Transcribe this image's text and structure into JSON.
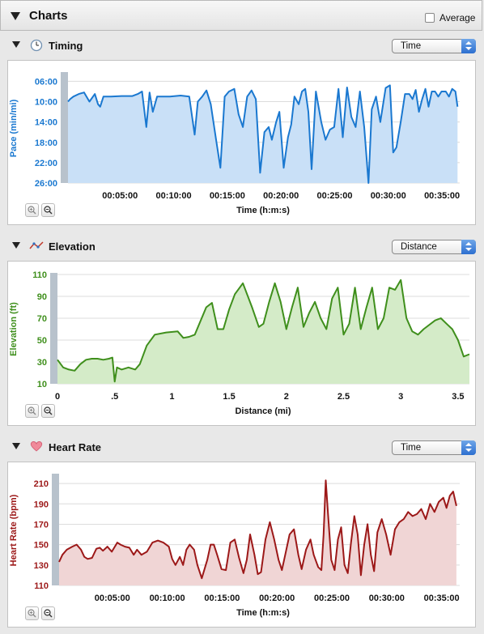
{
  "header": {
    "title": "Charts",
    "average_label": "Average"
  },
  "sections": [
    {
      "title": "Timing",
      "icon": "clock-icon",
      "select_value": "Time"
    },
    {
      "title": "Elevation",
      "icon": "elevation-graph-icon",
      "select_value": "Distance"
    },
    {
      "title": "Heart Rate",
      "icon": "heart-icon",
      "select_value": "Time"
    }
  ],
  "chart_data": [
    {
      "type": "area",
      "color": "#1a78d0",
      "fill": "#c9e0f7",
      "xlabel": "Time (h:m:s)",
      "ylabel": "Pace (min/mi)",
      "x_unit": "minutes",
      "xlim": [
        0,
        36.5
      ],
      "ylim": [
        26,
        4.5
      ],
      "y_inverted": true,
      "x_ticks": [
        {
          "v": 5,
          "label": "00:05:00"
        },
        {
          "v": 10,
          "label": "00:10:00"
        },
        {
          "v": 15,
          "label": "00:15:00"
        },
        {
          "v": 20,
          "label": "00:20:00"
        },
        {
          "v": 25,
          "label": "00:25:00"
        },
        {
          "v": 30,
          "label": "00:30:00"
        },
        {
          "v": 35,
          "label": "00:35:00"
        }
      ],
      "y_ticks": [
        {
          "v": 6,
          "label": "06:00"
        },
        {
          "v": 10,
          "label": "10:00"
        },
        {
          "v": 14,
          "label": "14:00"
        },
        {
          "v": 18,
          "label": "18:00"
        },
        {
          "v": 22,
          "label": "22:00"
        },
        {
          "v": 26,
          "label": "26:00"
        }
      ],
      "x": [
        0,
        0.2,
        0.5,
        1,
        1.5,
        2,
        2.5,
        2.8,
        3,
        3.3,
        3.6,
        4,
        5,
        6,
        6.5,
        6.9,
        7.3,
        7.6,
        7.9,
        8.3,
        8.7,
        9.5,
        10.5,
        11.3,
        11.8,
        12.1,
        12.5,
        12.9,
        13.3,
        13.8,
        14.2,
        14.6,
        15,
        15.5,
        15.9,
        16.3,
        16.7,
        17.1,
        17.5,
        17.9,
        18.3,
        18.7,
        19,
        19.4,
        19.7,
        20.1,
        20.5,
        20.8,
        21.1,
        21.5,
        21.8,
        22.1,
        22.4,
        22.7,
        23.1,
        23.6,
        24,
        24.4,
        24.8,
        25.2,
        25.6,
        26,
        26.4,
        26.8,
        27.2,
        27.6,
        28,
        28.3,
        28.7,
        29.1,
        29.6,
        30,
        30.3,
        30.6,
        31,
        31.4,
        31.8,
        32.1,
        32.4,
        32.7,
        33,
        33.3,
        33.6,
        33.9,
        34.2,
        34.5,
        34.8,
        35.2,
        35.5,
        35.8,
        36.1,
        36.3
      ],
      "y": [
        10,
        9.5,
        9,
        8.5,
        8.2,
        10,
        8.5,
        10.5,
        11,
        9,
        9,
        9,
        8.9,
        8.9,
        8.5,
        8,
        15,
        8.2,
        12,
        9,
        9,
        9,
        8.8,
        9,
        16.5,
        10,
        9,
        7.8,
        10.5,
        17.5,
        23,
        9,
        8,
        7.5,
        12.5,
        15,
        9,
        7.8,
        9.5,
        24,
        16,
        15,
        17.5,
        14,
        12,
        23,
        17,
        14.5,
        9,
        10.5,
        8,
        7.5,
        12,
        23.3,
        8,
        14,
        17.5,
        15.5,
        15,
        7.5,
        17,
        7.2,
        13,
        15,
        8,
        15,
        26,
        11.5,
        9,
        14,
        7.3,
        6.8,
        20,
        19,
        14,
        8.5,
        8.5,
        9.5,
        7.7,
        12,
        9.5,
        7.5,
        11,
        8,
        8,
        9,
        8,
        8,
        9,
        7.5,
        8,
        11
      ]
    },
    {
      "type": "area",
      "color": "#3f8f1c",
      "fill": "#d4ebc8",
      "xlabel": "Distance (mi)",
      "ylabel": "Elevation (ft)",
      "xlim": [
        0,
        3.6
      ],
      "ylim": [
        10,
        110
      ],
      "x_ticks": [
        {
          "v": 0,
          "label": "0"
        },
        {
          "v": 0.5,
          "label": ".5"
        },
        {
          "v": 1,
          "label": "1"
        },
        {
          "v": 1.5,
          "label": "1.5"
        },
        {
          "v": 2,
          "label": "2"
        },
        {
          "v": 2.5,
          "label": "2.5"
        },
        {
          "v": 3,
          "label": "3"
        },
        {
          "v": 3.5,
          "label": "3.5"
        }
      ],
      "y_ticks": [
        {
          "v": 10,
          "label": "10"
        },
        {
          "v": 30,
          "label": "30"
        },
        {
          "v": 50,
          "label": "50"
        },
        {
          "v": 70,
          "label": "70"
        },
        {
          "v": 90,
          "label": "90"
        },
        {
          "v": 110,
          "label": "110"
        }
      ],
      "x": [
        0,
        0.05,
        0.1,
        0.15,
        0.2,
        0.25,
        0.3,
        0.35,
        0.4,
        0.45,
        0.48,
        0.5,
        0.52,
        0.56,
        0.62,
        0.68,
        0.72,
        0.78,
        0.85,
        0.95,
        1.05,
        1.1,
        1.15,
        1.2,
        1.3,
        1.35,
        1.4,
        1.45,
        1.5,
        1.55,
        1.62,
        1.7,
        1.76,
        1.8,
        1.85,
        1.9,
        1.95,
        2.0,
        2.05,
        2.1,
        2.15,
        2.2,
        2.25,
        2.3,
        2.35,
        2.4,
        2.45,
        2.5,
        2.55,
        2.6,
        2.65,
        2.7,
        2.75,
        2.8,
        2.85,
        2.9,
        2.95,
        3.0,
        3.05,
        3.1,
        3.15,
        3.2,
        3.3,
        3.35,
        3.4,
        3.45,
        3.5,
        3.55,
        3.6
      ],
      "y": [
        32,
        25,
        23,
        22,
        28,
        32,
        33,
        33,
        32,
        33,
        34,
        12,
        25,
        23,
        25,
        23,
        28,
        45,
        55,
        57,
        58,
        52,
        53,
        55,
        80,
        84,
        60,
        60,
        78,
        92,
        102,
        80,
        62,
        65,
        85,
        102,
        85,
        60,
        80,
        98,
        62,
        75,
        85,
        70,
        60,
        88,
        98,
        55,
        65,
        98,
        60,
        80,
        98,
        60,
        70,
        98,
        96,
        105,
        70,
        58,
        55,
        60,
        68,
        70,
        65,
        60,
        50,
        35,
        37
      ]
    },
    {
      "type": "area",
      "color": "#9c1818",
      "fill": "#f0d5d5",
      "xlabel": "Time (h:m:s)",
      "ylabel": "Heart Rate (bpm)",
      "x_unit": "minutes",
      "xlim": [
        0,
        36.5
      ],
      "ylim": [
        110,
        218
      ],
      "x_ticks": [
        {
          "v": 5,
          "label": "00:05:00"
        },
        {
          "v": 10,
          "label": "00:10:00"
        },
        {
          "v": 15,
          "label": "00:15:00"
        },
        {
          "v": 20,
          "label": "00:20:00"
        },
        {
          "v": 25,
          "label": "00:25:00"
        },
        {
          "v": 30,
          "label": "00:30:00"
        },
        {
          "v": 35,
          "label": "00:35:00"
        }
      ],
      "y_ticks": [
        {
          "v": 110,
          "label": "110"
        },
        {
          "v": 130,
          "label": "130"
        },
        {
          "v": 150,
          "label": "150"
        },
        {
          "v": 170,
          "label": "170"
        },
        {
          "v": 190,
          "label": "190"
        },
        {
          "v": 210,
          "label": "210"
        }
      ],
      "x": [
        0,
        0.3,
        0.7,
        1.2,
        1.6,
        2,
        2.3,
        2.6,
        3,
        3.4,
        3.7,
        4,
        4.4,
        4.8,
        5.3,
        5.6,
        6,
        6.4,
        6.8,
        7.1,
        7.5,
        8.0,
        8.5,
        9.0,
        9.5,
        10,
        10.3,
        10.6,
        11,
        11.3,
        11.6,
        11.9,
        12.3,
        12.6,
        13,
        13.5,
        13.8,
        14.1,
        14.4,
        14.8,
        15.2,
        15.6,
        16,
        16.4,
        16.8,
        17.1,
        17.4,
        17.8,
        18.1,
        18.4,
        18.8,
        19.2,
        19.6,
        20,
        20.3,
        20.6,
        21,
        21.4,
        21.8,
        22.1,
        22.5,
        22.9,
        23.2,
        23.6,
        23.9,
        24.1,
        24.3,
        24.5,
        24.8,
        25.1,
        25.4,
        25.7,
        26,
        26.3,
        26.6,
        26.9,
        27.2,
        27.5,
        27.8,
        28.1,
        28.4,
        28.7,
        29,
        29.4,
        29.8,
        30.2,
        30.6,
        31,
        31.4,
        31.8,
        32.2,
        32.6,
        33,
        33.4,
        33.8,
        34.2,
        34.6,
        35,
        35.3,
        35.6,
        35.9,
        36.2
      ],
      "y": [
        133,
        140,
        145,
        148,
        150,
        145,
        138,
        136,
        137,
        146,
        147,
        144,
        148,
        143,
        152,
        150,
        148,
        147,
        140,
        145,
        140,
        143,
        152,
        154,
        152,
        148,
        136,
        130,
        138,
        130,
        145,
        150,
        145,
        130,
        117,
        135,
        150,
        150,
        140,
        126,
        125,
        152,
        155,
        137,
        122,
        135,
        160,
        140,
        121,
        123,
        155,
        172,
        155,
        135,
        125,
        140,
        160,
        165,
        140,
        126,
        145,
        155,
        140,
        128,
        125,
        160,
        213,
        180,
        135,
        125,
        155,
        167,
        130,
        122,
        152,
        178,
        160,
        120,
        150,
        170,
        140,
        124,
        162,
        175,
        160,
        140,
        165,
        172,
        175,
        182,
        178,
        180,
        185,
        175,
        190,
        182,
        192,
        196,
        186,
        198,
        202,
        188
      ]
    }
  ]
}
